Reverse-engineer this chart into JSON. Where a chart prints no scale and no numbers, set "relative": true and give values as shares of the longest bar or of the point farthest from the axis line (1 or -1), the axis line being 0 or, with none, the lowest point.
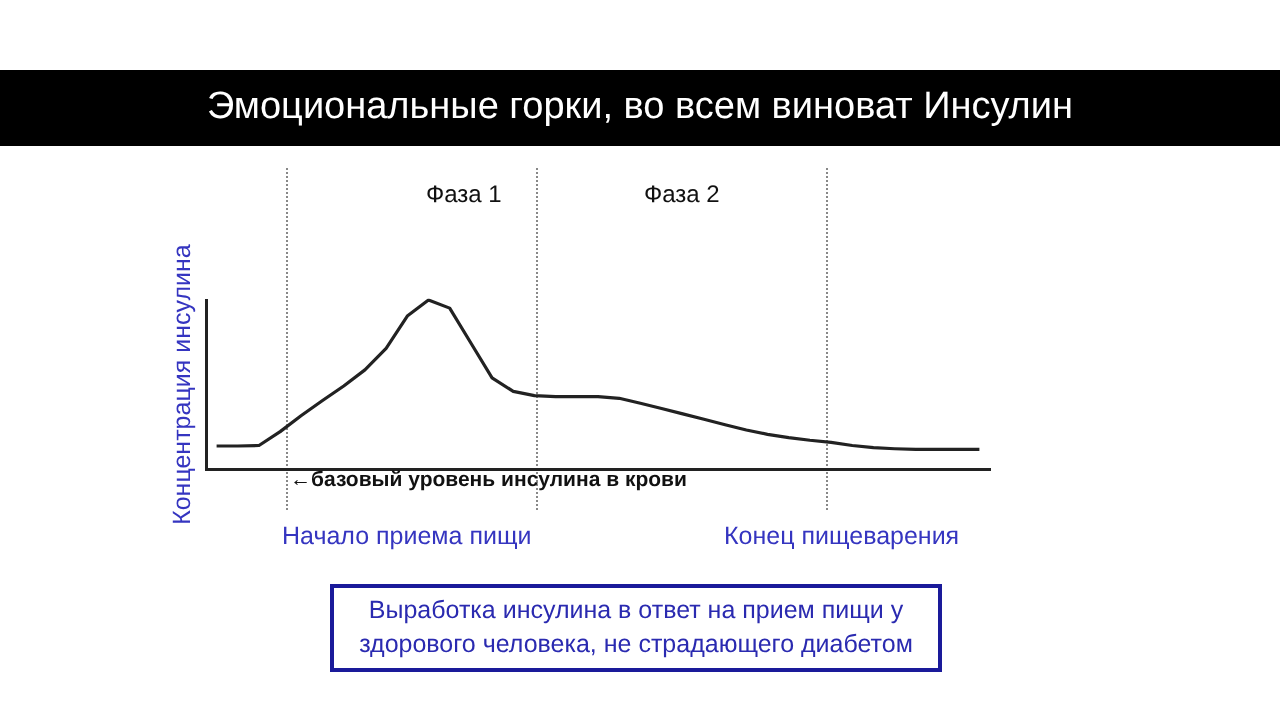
{
  "chart_data": {
    "type": "line",
    "title": "Эмоциональные горки, во всем виноват Инсулин",
    "ylabel": "Концентрация инсулина",
    "relative": true,
    "grid": false,
    "legend": false,
    "marker": "none",
    "line_style": "solid",
    "categories": [
      null,
      null,
      null,
      null,
      null,
      null,
      null,
      null,
      null,
      null,
      null,
      null,
      null,
      null,
      null,
      null,
      null,
      null,
      null,
      null,
      null,
      null,
      null,
      null,
      null,
      null,
      null,
      null,
      null,
      null,
      null,
      null,
      null,
      null,
      null,
      null,
      null
    ],
    "series": [
      {
        "color": "#222222",
        "values": [
          0.137,
          0.137,
          0.14,
          0.222,
          0.317,
          0.406,
          0.492,
          0.587,
          0.714,
          0.905,
          1,
          0.952,
          0.746,
          0.54,
          0.46,
          0.435,
          0.429,
          0.429,
          0.429,
          0.419,
          0.39,
          0.359,
          0.327,
          0.295,
          0.263,
          0.232,
          0.206,
          0.187,
          0.171,
          0.159,
          0.14,
          0.127,
          0.121,
          0.117,
          0.117,
          0.117,
          0.117
        ]
      }
    ],
    "annotations": [
      "Фаза 1",
      "Фаза 2",
      "←базовый уровень инсулина в крови",
      "Начало приема пищи",
      "Конец пищеварения",
      "Выработка инсулина в ответ на прием пищи у здорового человека, не страдающего диабетом"
    ]
  }
}
